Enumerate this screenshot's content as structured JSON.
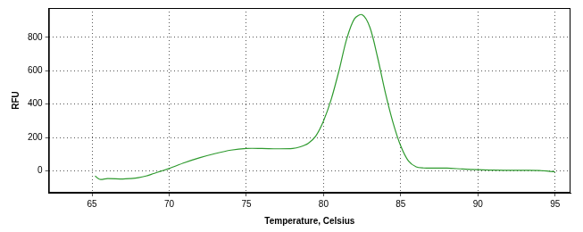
{
  "chart_data": {
    "type": "line",
    "x_label": "Temperature, Celsius",
    "y_label": "RFU",
    "x": [
      65.2,
      65.5,
      66,
      67,
      67.5,
      68,
      68.5,
      69,
      69.5,
      70,
      71,
      72,
      73,
      74,
      75,
      76,
      77,
      78,
      78.5,
      79,
      79.5,
      80,
      80.5,
      81,
      81.5,
      82,
      82.5,
      83,
      83.5,
      84,
      84.5,
      85,
      85.5,
      86,
      86.5,
      87,
      88,
      89,
      90,
      91,
      92,
      93,
      94,
      95
    ],
    "values": [
      -30,
      -50,
      -45,
      -48,
      -45,
      -40,
      -30,
      -15,
      0,
      15,
      50,
      80,
      105,
      125,
      135,
      135,
      133,
      135,
      145,
      165,
      210,
      300,
      430,
      600,
      790,
      910,
      935,
      860,
      680,
      470,
      290,
      150,
      60,
      25,
      18,
      17,
      17,
      12,
      8,
      5,
      4,
      4,
      3,
      -5
    ],
    "color": "#2e9a2e",
    "xlim": [
      62.2,
      96
    ],
    "xticks": [
      65,
      70,
      75,
      80,
      85,
      90,
      95
    ],
    "ylim": [
      -130,
      975
    ],
    "yticks": [
      0,
      200,
      400,
      600,
      800
    ],
    "grid": true
  }
}
